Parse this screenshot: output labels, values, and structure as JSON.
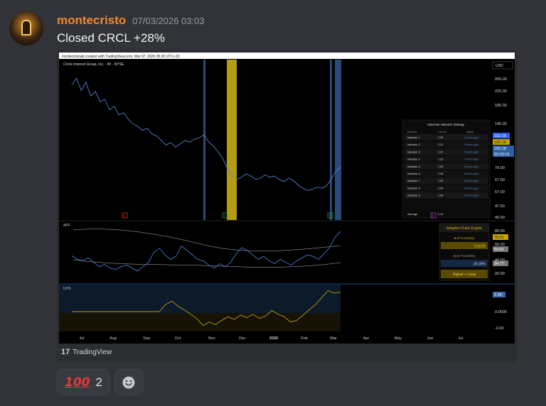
{
  "message": {
    "author": "montecristo",
    "timestamp": "07/03/2026 03:03",
    "text": "Closed CRCL +28%"
  },
  "chart": {
    "top_caption": "montecristoab created with TradingView.com, Mar 07, 2026 05:26 UTC+13",
    "symbol_title": "Circle Internet Group, Inc. · 4h · NYSE",
    "currency": "USD",
    "main_price_ticks": [
      "265.00",
      "225.00",
      "185.00",
      "145.00",
      "79.00",
      "67.00",
      "57.00",
      "47.00",
      "40.00"
    ],
    "price_tags": [
      "102.18",
      "102.18",
      "102.18",
      "02:03:16"
    ],
    "apf_label": "APF",
    "apf_ticks": [
      "80.00",
      "60.00",
      "40.00",
      "20.00"
    ],
    "apf_tags": [
      "78.51",
      "54.52",
      "34.77"
    ],
    "uvs_label": "UVS",
    "uvs_ticks": [
      "0.0000",
      "-2.00"
    ],
    "uvs_tag": "2.24",
    "x_ticks": [
      "Jul",
      "Aug",
      "Sep",
      "Oct",
      "Nov",
      "Dec",
      "2026",
      "Feb",
      "Mar",
      "Apr",
      "May",
      "Jun",
      "Jul"
    ],
    "markers": [
      "E",
      "E",
      "E",
      "E"
    ],
    "table": {
      "title": "Universal Valuation Strategy",
      "headers": [
        "Indicator",
        "Z-Score",
        "Signal"
      ],
      "rows": [
        [
          "Indicator 1",
          "2.38",
          "Overbought"
        ],
        [
          "Indicator 2",
          "2.41",
          "Overbought"
        ],
        [
          "Indicator 3",
          "2.07",
          "Overbought"
        ],
        [
          "Indicator 4",
          "1.93",
          "Overbought"
        ],
        [
          "Indicator 5",
          "2.09",
          "Overbought"
        ],
        [
          "Indicator 6",
          "2.35",
          "Overbought"
        ],
        [
          "Indicator 7",
          "2.32",
          "Overbought"
        ],
        [
          "Indicator 8",
          "2.64",
          "Overbought"
        ],
        [
          "Indicator 9",
          "1.96",
          "Overbought"
        ]
      ],
      "average_label": "Average",
      "average_value": "2.24"
    },
    "engine": {
      "title": "Adaptive Pulse Engine",
      "bull_label": "Bull Probability",
      "bull_value": "73.61%",
      "bear_label": "Bear Probability",
      "bear_value": "26.39%",
      "signal": "Signal ⇒ Long"
    },
    "price_series": [
      250,
      262,
      240,
      255,
      230,
      238,
      220,
      224,
      205,
      212,
      196,
      200,
      188,
      180,
      175,
      168,
      172,
      162,
      158,
      150,
      142,
      146,
      138,
      144,
      150,
      147,
      152,
      155,
      160,
      148,
      140,
      130,
      118,
      100,
      88,
      80,
      84,
      90,
      86,
      80,
      82,
      88,
      84,
      86,
      80,
      76,
      82,
      78,
      70,
      64,
      60,
      62,
      66,
      64,
      68,
      80,
      95,
      102
    ],
    "apf_series": [
      45,
      40,
      38,
      42,
      36,
      30,
      33,
      28,
      26,
      30,
      32,
      28,
      24,
      30,
      36,
      50,
      55,
      46,
      40,
      44,
      58,
      52,
      46,
      40,
      38,
      32,
      28,
      34,
      30,
      36,
      48,
      56,
      52,
      46,
      40,
      44,
      38,
      34,
      40,
      36,
      32,
      38,
      42,
      46,
      44,
      40,
      48,
      56,
      70,
      78
    ],
    "uvs_series": [
      0,
      0,
      0,
      0,
      0,
      0,
      0,
      0,
      0,
      0,
      0,
      0,
      0,
      0,
      0,
      0.8,
      1.2,
      0.6,
      0.2,
      -0.3,
      -0.8,
      -1.6,
      -1.2,
      -1.5,
      -1.0,
      -0.6,
      -0.9,
      -0.4,
      -0.7,
      -0.3,
      -0.8,
      -0.5,
      0.1,
      -0.3,
      -0.6,
      -1.2,
      -1.0,
      -0.4,
      0.2,
      0.8,
      1.6,
      2.4,
      2.1,
      2.24
    ]
  },
  "credit": {
    "logo": "17",
    "text": "TradingView"
  },
  "reactions": [
    {
      "emoji": "100",
      "count": "2"
    }
  ]
}
